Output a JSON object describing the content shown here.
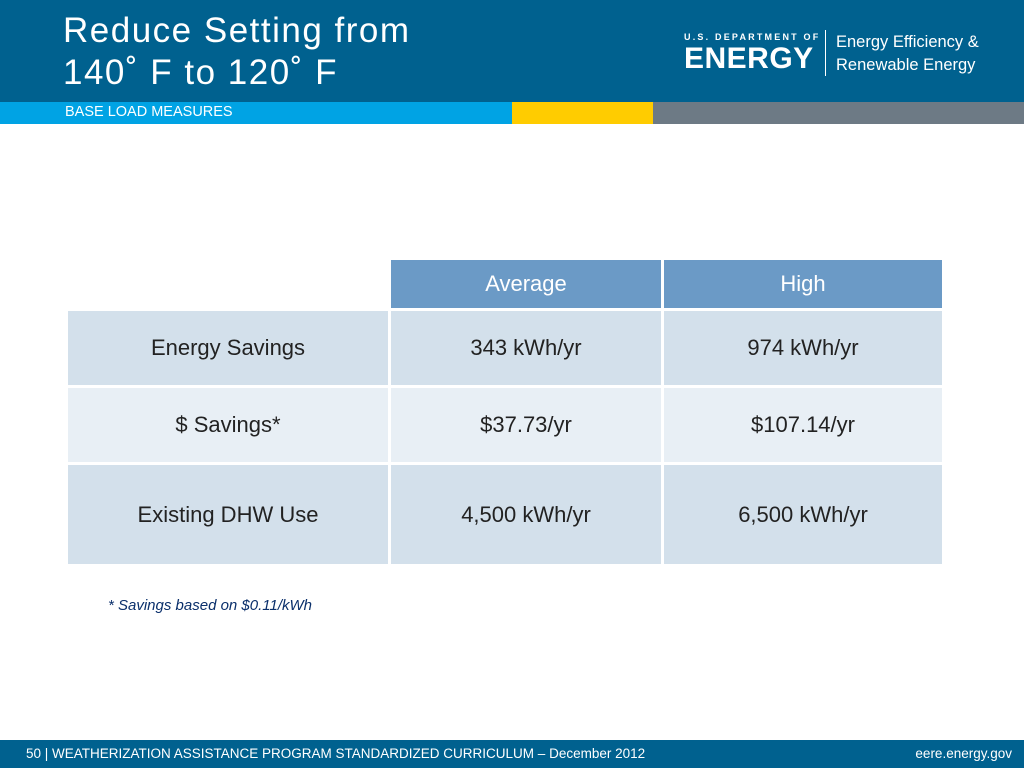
{
  "slide": {
    "title": "Reduce Setting from\n140˚ F to 120˚ F",
    "section": "BASE LOAD MEASURES"
  },
  "logo": {
    "department": "U.S. DEPARTMENT OF",
    "word": "ENERGY",
    "eere_line1": "Energy Efficiency &",
    "eere_line2": "Renewable Energy"
  },
  "table": {
    "columns": [
      "",
      "Average",
      "High"
    ],
    "rows": [
      {
        "label": "Energy Savings",
        "average": "343 kWh/yr",
        "high": "974 kWh/yr"
      },
      {
        "label": "$ Savings*",
        "average": "$37.73/yr",
        "high": "$107.14/yr"
      },
      {
        "label": "Existing DHW Use",
        "average": "4,500 kWh/yr",
        "high": "6,500 kWh/yr"
      }
    ]
  },
  "footnote": "* Savings based on $0.11/kWh",
  "footer": {
    "left": "50 | WEATHERIZATION ASSISTANCE PROGRAM STANDARDIZED CURRICULUM – December 2012",
    "right": "eere.energy.gov"
  },
  "colors": {
    "header": "#00618f",
    "accent_blue": "#00a3e4",
    "accent_yellow": "#ffcc00",
    "accent_gray": "#6d7a85",
    "table_header": "#6b9ac6"
  }
}
